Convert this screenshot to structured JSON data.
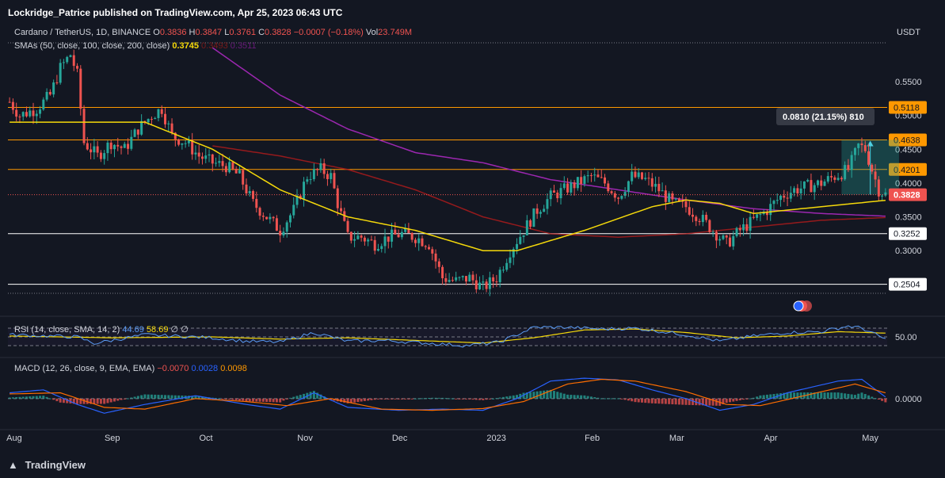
{
  "header": {
    "publisher": "Lockridge_Patrice published on TradingView.com, Apr 25, 2023 06:43 UTC"
  },
  "symbol": {
    "title": "Cardano / TetherUS, 1D, BINANCE",
    "open_label": "O",
    "open": "0.3836",
    "high_label": "H",
    "high": "0.3847",
    "low_label": "L",
    "low": "0.3761",
    "close_label": "C",
    "close": "0.3828",
    "change": "−0.0007 (−0.18%)",
    "vol_label": "Vol",
    "vol": "23.749M"
  },
  "sma_legend": {
    "label": "SMAs (50, close, 100, close, 200, close)",
    "v50": "0.3745",
    "v100": "0.3493",
    "v200": "0.3511"
  },
  "rsi_legend": {
    "label": "RSI (14, close, SMA, 14, 2)",
    "rsi": "44.69",
    "sma": "58.69",
    "x1": "∅",
    "x2": "∅"
  },
  "macd_legend": {
    "label": "MACD (12, 26, close, 9, EMA, EMA)",
    "hist": "−0.0070",
    "macd": "0.0028",
    "signal": "0.0098"
  },
  "currency": "USDT",
  "measure_label": "0.0810 (21.15%) 810",
  "footer": {
    "brand": "TradingView"
  },
  "colors": {
    "bg": "#131722",
    "up": "#26a69a",
    "down": "#ef5350",
    "sma50": "#f5d90a",
    "sma100": "#b71c1c",
    "sma200": "#9c27b0",
    "resistance": "#ff9800",
    "support": "#ffffff",
    "rsi": "#5b9cf6",
    "rsi_sma": "#f5d90a",
    "macd": "#2962ff",
    "signal": "#ff6d00",
    "measure": "#26a69a"
  },
  "chart_data": {
    "type": "candlestick",
    "x_labels": [
      "Aug",
      "Sep",
      "Oct",
      "Nov",
      "Dec",
      "2023",
      "Feb",
      "Mar",
      "Apr",
      "May"
    ],
    "price_ticks": [
      "0.5500",
      "0.5000",
      "0.4500",
      "0.4000",
      "0.3500",
      "0.3000"
    ],
    "price_ylim": [
      0.237,
      0.605
    ],
    "horizontal_levels": [
      {
        "value": 0.5118,
        "label": "0.5118",
        "kind": "resistance"
      },
      {
        "value": 0.4638,
        "label": "0.4638",
        "kind": "resistance"
      },
      {
        "value": 0.4201,
        "label": "0.4201",
        "kind": "resistance"
      },
      {
        "value": 0.3252,
        "label": "0.3252",
        "kind": "support"
      },
      {
        "value": 0.2504,
        "label": "0.2504",
        "kind": "support"
      }
    ],
    "last_price": {
      "value": 0.3828,
      "label": "0.3828"
    },
    "price_anchors": [
      [
        0,
        0.52
      ],
      [
        3,
        0.5
      ],
      [
        8,
        0.51
      ],
      [
        12,
        0.53
      ],
      [
        15,
        0.57
      ],
      [
        18,
        0.59
      ],
      [
        20,
        0.56
      ],
      [
        22,
        0.46
      ],
      [
        26,
        0.44
      ],
      [
        30,
        0.46
      ],
      [
        34,
        0.45
      ],
      [
        38,
        0.48
      ],
      [
        42,
        0.5
      ],
      [
        45,
        0.51
      ],
      [
        48,
        0.47
      ],
      [
        52,
        0.46
      ],
      [
        56,
        0.44
      ],
      [
        60,
        0.43
      ],
      [
        64,
        0.425
      ],
      [
        68,
        0.41
      ],
      [
        72,
        0.37
      ],
      [
        76,
        0.35
      ],
      [
        80,
        0.33
      ],
      [
        84,
        0.36
      ],
      [
        88,
        0.41
      ],
      [
        92,
        0.42
      ],
      [
        95,
        0.41
      ],
      [
        97,
        0.37
      ],
      [
        100,
        0.32
      ],
      [
        104,
        0.32
      ],
      [
        108,
        0.31
      ],
      [
        112,
        0.32
      ],
      [
        116,
        0.325
      ],
      [
        120,
        0.32
      ],
      [
        124,
        0.31
      ],
      [
        128,
        0.26
      ],
      [
        132,
        0.255
      ],
      [
        136,
        0.26
      ],
      [
        140,
        0.245
      ],
      [
        144,
        0.26
      ],
      [
        148,
        0.3
      ],
      [
        152,
        0.33
      ],
      [
        156,
        0.36
      ],
      [
        160,
        0.38
      ],
      [
        164,
        0.39
      ],
      [
        168,
        0.4
      ],
      [
        172,
        0.41
      ],
      [
        176,
        0.4
      ],
      [
        180,
        0.38
      ],
      [
        184,
        0.41
      ],
      [
        188,
        0.405
      ],
      [
        192,
        0.39
      ],
      [
        196,
        0.37
      ],
      [
        200,
        0.365
      ],
      [
        204,
        0.35
      ],
      [
        208,
        0.33
      ],
      [
        212,
        0.31
      ],
      [
        216,
        0.33
      ],
      [
        220,
        0.345
      ],
      [
        224,
        0.36
      ],
      [
        228,
        0.38
      ],
      [
        232,
        0.39
      ],
      [
        236,
        0.395
      ],
      [
        240,
        0.4
      ],
      [
        244,
        0.41
      ],
      [
        248,
        0.42
      ],
      [
        251,
        0.455
      ],
      [
        253,
        0.45
      ],
      [
        255,
        0.42
      ],
      [
        257,
        0.39
      ],
      [
        259,
        0.383
      ]
    ],
    "sma50_anchors": [
      [
        0,
        0.49
      ],
      [
        20,
        0.49
      ],
      [
        40,
        0.49
      ],
      [
        60,
        0.45
      ],
      [
        80,
        0.39
      ],
      [
        100,
        0.35
      ],
      [
        120,
        0.33
      ],
      [
        140,
        0.3
      ],
      [
        150,
        0.3
      ],
      [
        170,
        0.33
      ],
      [
        190,
        0.365
      ],
      [
        200,
        0.375
      ],
      [
        210,
        0.37
      ],
      [
        220,
        0.355
      ],
      [
        230,
        0.36
      ],
      [
        240,
        0.365
      ],
      [
        250,
        0.37
      ],
      [
        259,
        0.3745
      ]
    ],
    "sma100_anchors": [
      [
        60,
        0.455
      ],
      [
        80,
        0.44
      ],
      [
        100,
        0.42
      ],
      [
        120,
        0.39
      ],
      [
        140,
        0.35
      ],
      [
        160,
        0.325
      ],
      [
        180,
        0.32
      ],
      [
        200,
        0.325
      ],
      [
        220,
        0.335
      ],
      [
        240,
        0.345
      ],
      [
        259,
        0.349
      ]
    ],
    "sma200_anchors": [
      [
        60,
        0.6
      ],
      [
        80,
        0.53
      ],
      [
        100,
        0.48
      ],
      [
        120,
        0.445
      ],
      [
        140,
        0.43
      ],
      [
        160,
        0.405
      ],
      [
        180,
        0.39
      ],
      [
        200,
        0.375
      ],
      [
        220,
        0.362
      ],
      [
        240,
        0.355
      ],
      [
        259,
        0.3511
      ]
    ],
    "measure": {
      "from_value": 0.3828,
      "to_value": 0.4638,
      "label": "0.0810 (21.15%) 810"
    },
    "rsi_panel": {
      "tick": "50.00",
      "levels": [
        70,
        50,
        30
      ],
      "ylim": [
        10,
        90
      ],
      "rsi_anchors": [
        [
          0,
          55
        ],
        [
          20,
          50
        ],
        [
          25,
          35
        ],
        [
          40,
          55
        ],
        [
          60,
          48
        ],
        [
          70,
          40
        ],
        [
          80,
          38
        ],
        [
          90,
          60
        ],
        [
          100,
          40
        ],
        [
          110,
          42
        ],
        [
          125,
          35
        ],
        [
          135,
          30
        ],
        [
          145,
          38
        ],
        [
          155,
          72
        ],
        [
          165,
          72
        ],
        [
          175,
          68
        ],
        [
          185,
          70
        ],
        [
          200,
          55
        ],
        [
          210,
          40
        ],
        [
          220,
          52
        ],
        [
          230,
          60
        ],
        [
          240,
          62
        ],
        [
          248,
          75
        ],
        [
          252,
          70
        ],
        [
          259,
          44.69
        ]
      ],
      "sma_anchors": [
        [
          0,
          52
        ],
        [
          30,
          48
        ],
        [
          60,
          50
        ],
        [
          80,
          45
        ],
        [
          100,
          48
        ],
        [
          120,
          42
        ],
        [
          140,
          36
        ],
        [
          155,
          48
        ],
        [
          170,
          66
        ],
        [
          185,
          68
        ],
        [
          200,
          60
        ],
        [
          215,
          48
        ],
        [
          230,
          52
        ],
        [
          245,
          62
        ],
        [
          259,
          58.69
        ]
      ]
    },
    "macd_panel": {
      "tick": "0.0000",
      "ylim": [
        -0.045,
        0.05
      ],
      "macd_anchors": [
        [
          0,
          0.01
        ],
        [
          10,
          0.015
        ],
        [
          20,
          -0.01
        ],
        [
          28,
          -0.025
        ],
        [
          40,
          -0.01
        ],
        [
          55,
          0.005
        ],
        [
          70,
          -0.01
        ],
        [
          80,
          -0.018
        ],
        [
          90,
          0.01
        ],
        [
          100,
          -0.015
        ],
        [
          115,
          -0.02
        ],
        [
          128,
          -0.018
        ],
        [
          140,
          -0.02
        ],
        [
          150,
          0.0
        ],
        [
          160,
          0.03
        ],
        [
          170,
          0.035
        ],
        [
          180,
          0.032
        ],
        [
          190,
          0.015
        ],
        [
          200,
          0.0
        ],
        [
          210,
          -0.02
        ],
        [
          220,
          -0.01
        ],
        [
          230,
          0.01
        ],
        [
          245,
          0.03
        ],
        [
          252,
          0.033
        ],
        [
          259,
          0.0028
        ]
      ],
      "signal_anchors": [
        [
          0,
          0.008
        ],
        [
          15,
          0.01
        ],
        [
          28,
          -0.015
        ],
        [
          40,
          -0.018
        ],
        [
          55,
          0.0
        ],
        [
          70,
          -0.005
        ],
        [
          82,
          -0.012
        ],
        [
          95,
          0.0
        ],
        [
          110,
          -0.018
        ],
        [
          125,
          -0.02
        ],
        [
          140,
          -0.017
        ],
        [
          152,
          -0.005
        ],
        [
          165,
          0.025
        ],
        [
          175,
          0.033
        ],
        [
          185,
          0.03
        ],
        [
          200,
          0.012
        ],
        [
          212,
          -0.01
        ],
        [
          222,
          -0.012
        ],
        [
          235,
          0.005
        ],
        [
          250,
          0.025
        ],
        [
          259,
          0.0098
        ]
      ]
    }
  }
}
